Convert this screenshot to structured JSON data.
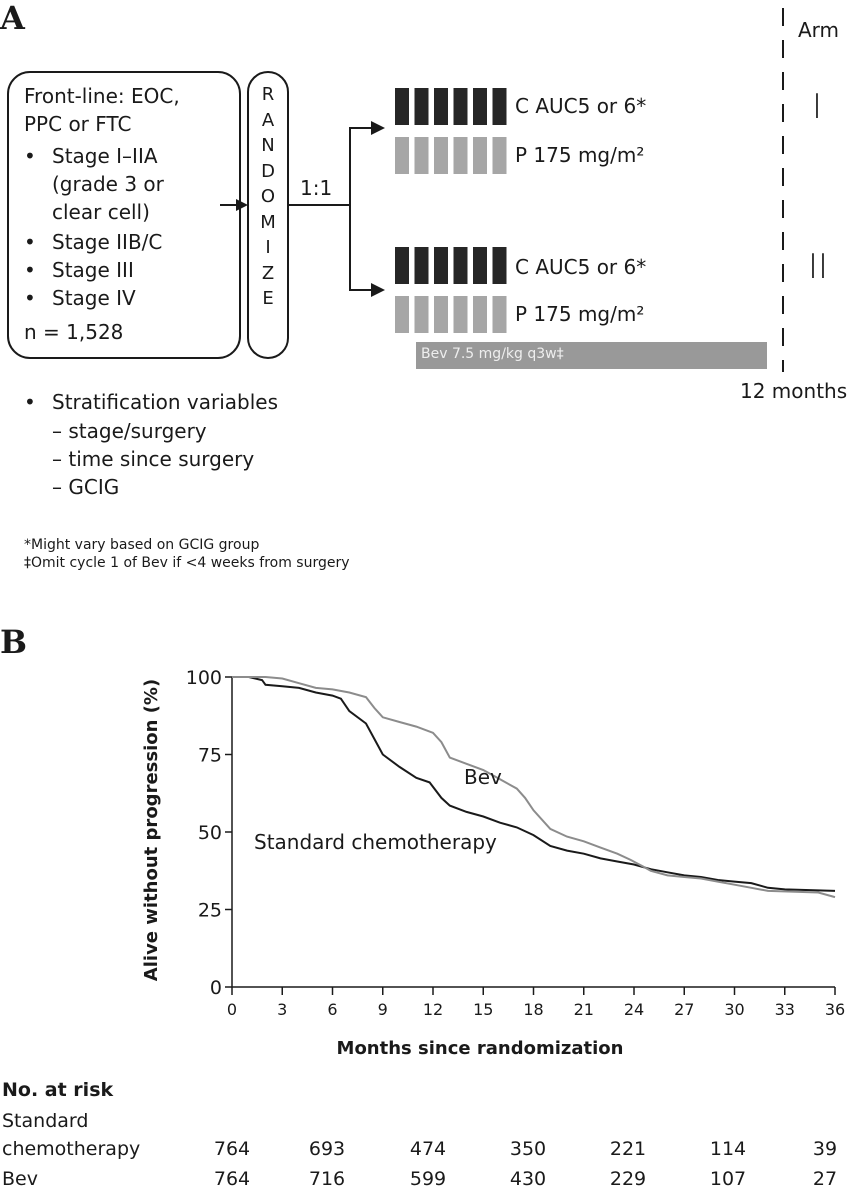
{
  "panel_a": {
    "label": "A",
    "eligibility": [
      "Front-line: EOC,",
      "PPC or FTC"
    ],
    "bullets": [
      "Stage I–IIA",
      "(grade 3 or",
      "clear cell)",
      "Stage IIB/C",
      "Stage III",
      "Stage IV"
    ],
    "n": "n = 1,528",
    "randomize": [
      "R",
      "A",
      "N",
      "D",
      "O",
      "M",
      "I",
      "Z",
      "E"
    ],
    "ratio": "1:1",
    "arm_header": "Arm",
    "arms": [
      {
        "label": "I",
        "c_label": "C AUC5 or 6*",
        "p_label": "P 175 mg/m²"
      },
      {
        "label": "II",
        "c_label": "C AUC5 or 6*",
        "p_label": "P 175 mg/m²",
        "bev_label": "Bev 7.5 mg/kg q3w‡"
      }
    ],
    "cycles": 6,
    "duration": "12 months",
    "stratification": [
      "Stratification variables",
      "– stage/surgery",
      "– time since surgery",
      "– GCIG"
    ],
    "footnotes": [
      "*Might vary based on GCIG group",
      "‡Omit cycle 1 of Bev if <4 weeks from surgery"
    ],
    "colors": {
      "carboplatin": "#262626",
      "paclitaxel": "#a6a6a6",
      "bev": "#999999"
    }
  },
  "chart_data": {
    "type": "line",
    "panel_label": "B",
    "xlabel": "Months since randomization",
    "ylabel": "Alive without progression (%)",
    "xlim": [
      0,
      36
    ],
    "ylim": [
      0,
      100
    ],
    "xticks": [
      0,
      3,
      6,
      9,
      12,
      15,
      18,
      21,
      24,
      27,
      30,
      33,
      36
    ],
    "yticks": [
      0,
      25,
      50,
      75,
      100
    ],
    "grid": false,
    "series": [
      {
        "name": "Standard chemotherapy",
        "color": "#1a1a1a",
        "x": [
          0,
          1,
          1.8,
          2,
          3,
          4,
          5,
          6,
          6.5,
          7,
          8,
          8.5,
          9,
          10,
          11,
          11.8,
          12.5,
          13,
          14,
          15,
          16,
          17,
          18,
          19,
          20,
          21,
          22,
          23,
          24,
          25,
          26,
          27,
          28,
          29,
          30,
          31,
          32,
          33,
          36
        ],
        "y": [
          100,
          100,
          99,
          97.5,
          97,
          96.5,
          95,
          94,
          93,
          89,
          85,
          80,
          75,
          71,
          67.5,
          66,
          61,
          58.5,
          56.5,
          55,
          53,
          51.5,
          49,
          45.5,
          44,
          43,
          41.5,
          40.5,
          39.5,
          38,
          37,
          36,
          35.5,
          34.5,
          34,
          33.5,
          32,
          31.5,
          31
        ]
      },
      {
        "name": "Bev",
        "color": "#8c8c8c",
        "x": [
          0,
          2,
          3,
          4,
          5,
          6,
          7,
          8,
          8.5,
          9,
          10,
          11,
          12,
          12.5,
          13,
          14,
          15,
          16,
          17,
          17.5,
          18,
          19,
          20,
          21,
          22,
          23,
          23.8,
          24.5,
          25,
          26,
          27,
          28,
          29,
          30,
          31,
          32,
          35,
          36
        ],
        "y": [
          100,
          100,
          99.5,
          98,
          96.5,
          96,
          95,
          93.5,
          90,
          87,
          85.5,
          84,
          82,
          79,
          74,
          72,
          70,
          67,
          64,
          61,
          57,
          51,
          48.5,
          47,
          45,
          43,
          41,
          39,
          37.5,
          36,
          35.5,
          35,
          34,
          33,
          32,
          31,
          30.5,
          29
        ]
      }
    ],
    "at_risk": {
      "title": "No. at risk",
      "months": [
        0,
        6,
        12,
        18,
        24,
        30,
        36
      ],
      "rows": [
        {
          "label": [
            "Standard",
            "chemotherapy"
          ],
          "values": [
            764,
            693,
            474,
            350,
            221,
            114,
            39
          ]
        },
        {
          "label": [
            "Bev"
          ],
          "values": [
            764,
            716,
            599,
            430,
            229,
            107,
            27
          ]
        }
      ]
    }
  }
}
